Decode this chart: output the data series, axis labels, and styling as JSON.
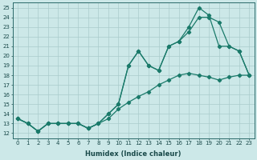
{
  "xlabel": "Humidex (Indice chaleur)",
  "bg_color": "#cce8e8",
  "grid_color": "#aacccc",
  "line_color": "#1a7a6a",
  "xlim": [
    -0.5,
    23.5
  ],
  "ylim": [
    11.5,
    25.5
  ],
  "xticks": [
    0,
    1,
    2,
    3,
    4,
    5,
    6,
    7,
    8,
    9,
    10,
    11,
    12,
    13,
    14,
    15,
    16,
    17,
    18,
    19,
    20,
    21,
    22,
    23
  ],
  "yticks": [
    12,
    13,
    14,
    15,
    16,
    17,
    18,
    19,
    20,
    21,
    22,
    23,
    24,
    25
  ],
  "line1_x": [
    0,
    1,
    2,
    3,
    4,
    5,
    6,
    7,
    8,
    9,
    10,
    11,
    12,
    13,
    14,
    15,
    16,
    17,
    18,
    19,
    20,
    21,
    22,
    23
  ],
  "line1_y": [
    13.5,
    13.0,
    12.2,
    13.0,
    13.0,
    13.0,
    13.0,
    12.5,
    13.0,
    14.0,
    15.0,
    19.0,
    20.5,
    19.0,
    18.5,
    21.0,
    21.5,
    23.0,
    25.0,
    24.2,
    21.0,
    21.0,
    20.5,
    18.0
  ],
  "line2_x": [
    0,
    1,
    2,
    3,
    4,
    5,
    6,
    7,
    8,
    9,
    10,
    11,
    12,
    13,
    14,
    15,
    16,
    17,
    18,
    19,
    20,
    21,
    22,
    23
  ],
  "line2_y": [
    13.5,
    13.0,
    12.2,
    13.0,
    13.0,
    13.0,
    13.0,
    12.5,
    13.0,
    14.0,
    15.0,
    19.0,
    20.5,
    19.0,
    18.5,
    21.0,
    21.5,
    22.5,
    24.0,
    24.0,
    23.5,
    21.0,
    20.5,
    18.0
  ],
  "line3_x": [
    0,
    1,
    2,
    3,
    4,
    5,
    6,
    7,
    8,
    9,
    10,
    11,
    12,
    13,
    14,
    15,
    16,
    17,
    18,
    19,
    20,
    21,
    22,
    23
  ],
  "line3_y": [
    13.5,
    13.0,
    12.2,
    13.0,
    13.0,
    13.0,
    13.0,
    12.5,
    13.0,
    13.5,
    14.5,
    15.2,
    15.8,
    16.3,
    17.0,
    17.5,
    18.0,
    18.2,
    18.0,
    17.8,
    17.5,
    17.8,
    18.0,
    18.0
  ]
}
